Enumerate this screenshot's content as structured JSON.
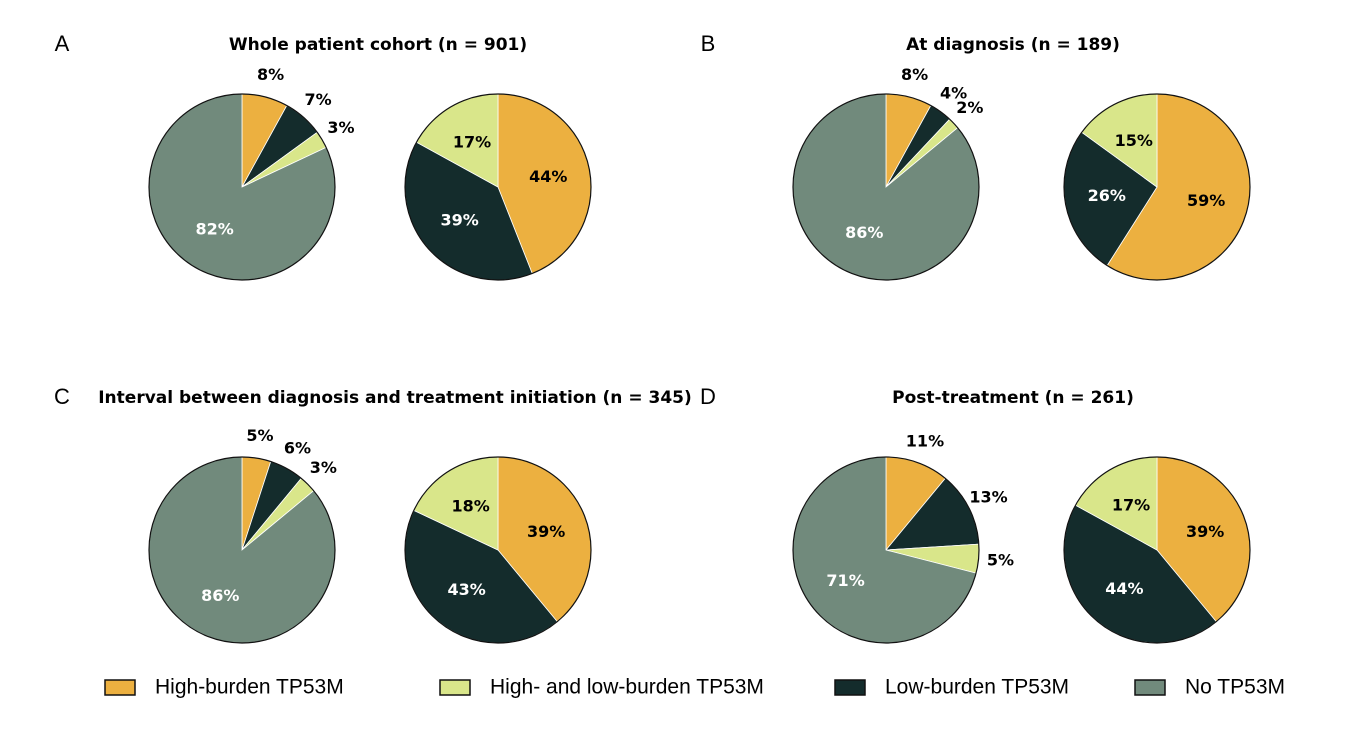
{
  "chart_data": [
    {
      "type": "pie",
      "label": "A",
      "title": "Whole patient cohort (n = 901)",
      "pies": [
        {
          "values": [
            8,
            7,
            3,
            82
          ],
          "value_labels": [
            "8%",
            "7%",
            "3%",
            "82%"
          ],
          "colors": [
            "#ecb040",
            "#142c2c",
            "#d9e68a",
            "#718a7c"
          ]
        },
        {
          "values": [
            44,
            39,
            17
          ],
          "value_labels": [
            "44%",
            "39%",
            "17%"
          ],
          "colors": [
            "#ecb040",
            "#142c2c",
            "#d9e68a"
          ]
        }
      ]
    },
    {
      "type": "pie",
      "label": "B",
      "title": "At diagnosis (n = 189)",
      "pies": [
        {
          "values": [
            8,
            4,
            2,
            86
          ],
          "value_labels": [
            "8%",
            "4%",
            "2%",
            "86%"
          ],
          "colors": [
            "#ecb040",
            "#142c2c",
            "#d9e68a",
            "#718a7c"
          ]
        },
        {
          "values": [
            59,
            26,
            15
          ],
          "value_labels": [
            "59%",
            "26%",
            "15%"
          ],
          "colors": [
            "#ecb040",
            "#142c2c",
            "#d9e68a"
          ]
        }
      ]
    },
    {
      "type": "pie",
      "label": "C",
      "title": "Interval between diagnosis and treatment initiation (n = 345)",
      "pies": [
        {
          "values": [
            5,
            6,
            3,
            86
          ],
          "value_labels": [
            "5%",
            "6%",
            "3%",
            "86%"
          ],
          "colors": [
            "#ecb040",
            "#142c2c",
            "#d9e68a",
            "#718a7c"
          ]
        },
        {
          "values": [
            39,
            43,
            18
          ],
          "value_labels": [
            "39%",
            "43%",
            "18%"
          ],
          "colors": [
            "#ecb040",
            "#142c2c",
            "#d9e68a"
          ]
        }
      ]
    },
    {
      "type": "pie",
      "label": "D",
      "title": "Post-treatment (n = 261)",
      "pies": [
        {
          "values": [
            11,
            13,
            5,
            71
          ],
          "value_labels": [
            "11%",
            "13%",
            "5%",
            "71%"
          ],
          "colors": [
            "#ecb040",
            "#142c2c",
            "#d9e68a",
            "#718a7c"
          ]
        },
        {
          "values": [
            39,
            44,
            17
          ],
          "value_labels": [
            "39%",
            "44%",
            "17%"
          ],
          "colors": [
            "#ecb040",
            "#142c2c",
            "#d9e68a"
          ]
        }
      ]
    }
  ],
  "legend": [
    {
      "name": "High-burden TP53M",
      "color": "#ecb040"
    },
    {
      "name": "High- and low-burden TP53M",
      "color": "#d9e68a"
    },
    {
      "name": "Low-burden TP53M",
      "color": "#142c2c"
    },
    {
      "name": "No TP53M",
      "color": "#718a7c"
    }
  ]
}
